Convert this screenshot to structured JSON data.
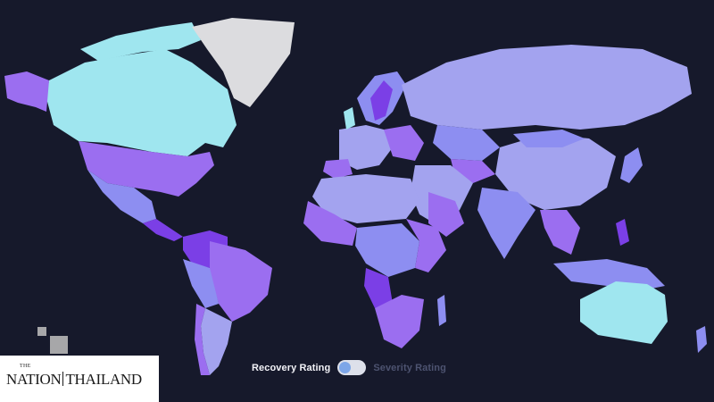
{
  "map": {
    "legend_colors": {
      "background": "#16192b",
      "light_cyan": "#9fe6ef",
      "lavender": "#a3a3ef",
      "periwinkle": "#8d8ef1",
      "violet": "#9b6ef0",
      "deep_violet": "#7b3fe6",
      "greenland_gray": "#dcdcdf"
    }
  },
  "toggle": {
    "left_label": "Recovery Rating",
    "right_label": "Severity Rating",
    "state": "recovery"
  },
  "watermark": {
    "the": "THE",
    "brand_left": "NATION",
    "brand_right": "THAILAND"
  }
}
